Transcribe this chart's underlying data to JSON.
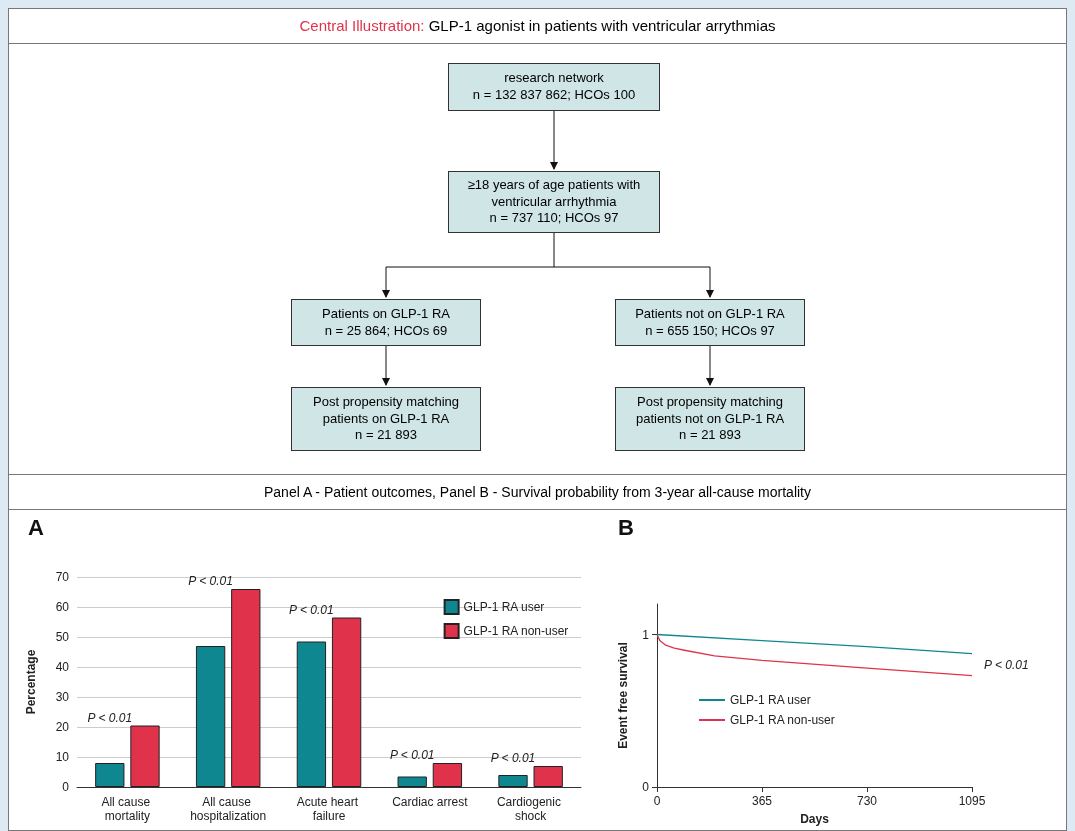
{
  "chart_data": [
    {
      "type": "other",
      "title": "Central Illustration:",
      "subtitle": "GLP-1 agonist in patients with ventricular arrythmias",
      "annotations": [
        "research network\nn = 132 837 862; HCOs 100",
        "≥18 years of age patients with\nventricular arrhythmia\nn = 737 110; HCOs 97",
        "Patients on GLP-1 RA\nn = 25 864; HCOs 69",
        "Patients not on GLP-1 RA\nn = 655 150; HCOs 97",
        "Post propensity matching\npatients on GLP-1 RA\nn = 21 893",
        "Post propensity matching\npatients not on GLP-1 RA\nn = 21 893",
        "Panel A - Patient outcomes, Panel B - Survival probability from 3-year all-cause mortality"
      ]
    },
    {
      "type": "bar",
      "title": "A",
      "ylabel": "Percentage",
      "categories": [
        "All cause mortality",
        "All cause hospitalization",
        "Acute heart failure",
        "Cardiac arrest",
        "Cardiogenic shock"
      ],
      "series": [
        {
          "name": "GLP-1 RA user",
          "color": "#0f8791",
          "values": [
            8,
            47,
            48.5,
            3.5,
            4
          ]
        },
        {
          "name": "GLP-1 RA non-user",
          "color": "#e0334b",
          "values": [
            20.5,
            66,
            56.5,
            8,
            7
          ]
        }
      ],
      "ylim": [
        0,
        70
      ],
      "yticks": [
        0,
        10,
        20,
        30,
        40,
        50,
        60,
        70
      ],
      "grid": "y",
      "legend": "top right",
      "annotations": [
        "P < 0.01",
        "P < 0.01",
        "P < 0.01",
        "P < 0.01",
        "P < 0.01"
      ]
    },
    {
      "type": "line",
      "title": "B",
      "xlabel": "Days",
      "ylabel": "Event free survival",
      "series": [
        {
          "name": "GLP-1 RA user",
          "color": "#0f8791",
          "x": [
            0,
            365,
            730,
            1095
          ],
          "values": [
            1,
            0.96,
            0.92,
            0.875
          ]
        },
        {
          "name": "GLP-1 RA non-user",
          "color": "#e0334b",
          "x": [
            0,
            10,
            30,
            60,
            100,
            200,
            365,
            730,
            1095
          ],
          "values": [
            1,
            0.96,
            0.93,
            0.91,
            0.895,
            0.86,
            0.83,
            0.78,
            0.73
          ]
        }
      ],
      "xlim": [
        0,
        1095
      ],
      "xticks": [
        0,
        365,
        730,
        1095
      ],
      "ylim": [
        0,
        1.2
      ],
      "yticks": [
        0,
        1
      ],
      "legend": "left",
      "marker": "none",
      "annotations": [
        "P < 0.01"
      ]
    }
  ]
}
